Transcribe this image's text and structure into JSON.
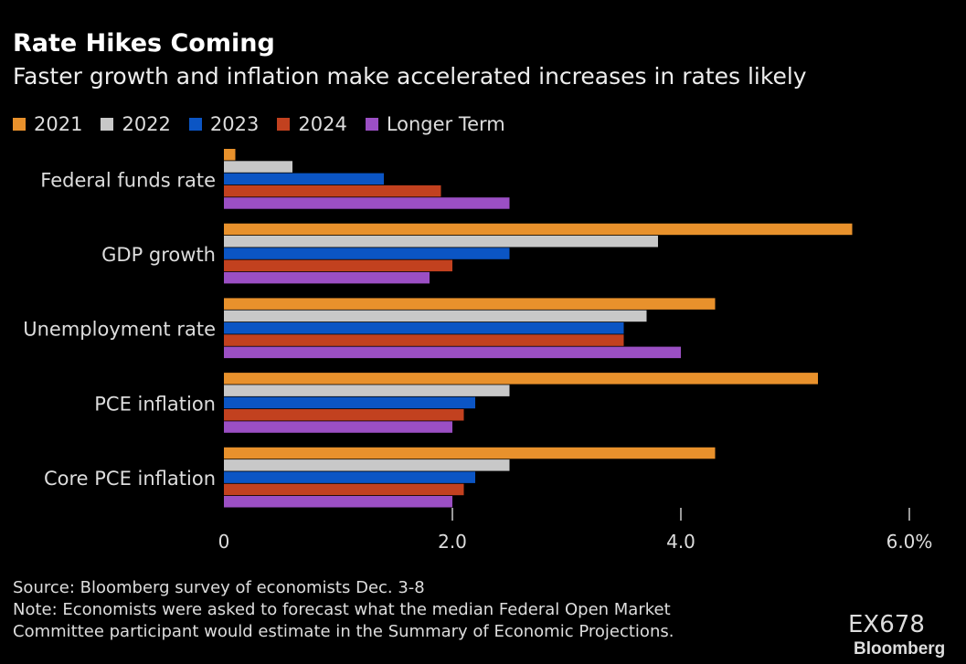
{
  "chart_data": {
    "type": "bar",
    "orientation": "horizontal",
    "title": "Rate Hikes Coming",
    "subtitle": "Faster growth and inflation make accelerated increases in rates likely",
    "categories": [
      "Federal funds rate",
      "GDP growth",
      "Unemployment rate",
      "PCE inflation",
      "Core PCE inflation"
    ],
    "series": [
      {
        "name": "2021",
        "color": "#e8912c",
        "values": [
          0.1,
          5.5,
          4.3,
          5.2,
          4.3
        ]
      },
      {
        "name": "2022",
        "color": "#c8c8c8",
        "values": [
          0.6,
          3.8,
          3.7,
          2.5,
          2.5
        ]
      },
      {
        "name": "2023",
        "color": "#0b55c4",
        "values": [
          1.4,
          2.5,
          3.5,
          2.2,
          2.2
        ]
      },
      {
        "name": "2024",
        "color": "#c2411f",
        "values": [
          1.9,
          2.0,
          3.5,
          2.1,
          2.1
        ]
      },
      {
        "name": "Longer Term",
        "color": "#9b4fc4",
        "values": [
          2.5,
          1.8,
          4.0,
          2.0,
          2.0
        ]
      }
    ],
    "xlim": [
      0,
      6
    ],
    "xticks": [
      {
        "value": 0,
        "label": "0"
      },
      {
        "value": 2,
        "label": "2.0"
      },
      {
        "value": 4,
        "label": "4.0"
      },
      {
        "value": 6,
        "label": "6.0%"
      }
    ],
    "legend_position": "top-left",
    "grid": false
  },
  "footer": {
    "source": "Source: Bloomberg survey of economists Dec. 3-8",
    "note_line1": "Note: Economists were asked to forecast what the median Federal Open Market",
    "note_line2": "Committee participant would estimate in the Summary of Economic Projections."
  },
  "code": "EX678",
  "brand": "Bloomberg"
}
